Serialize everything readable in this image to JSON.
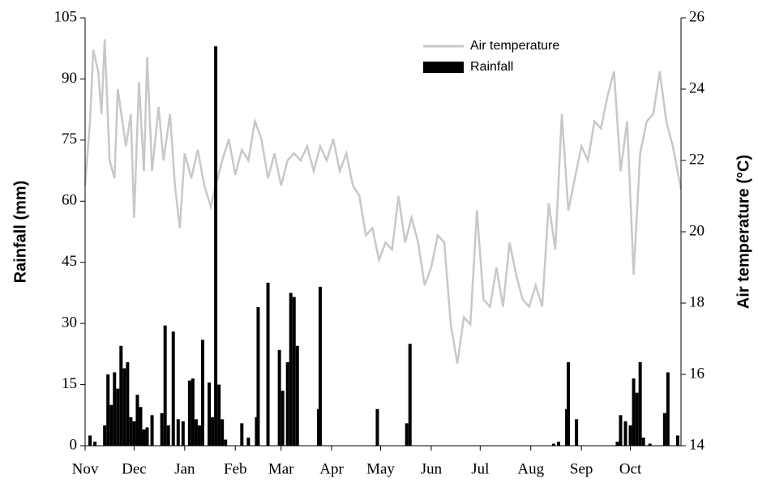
{
  "chart_data": {
    "type": "combo",
    "y_label": "Rainfall (mm)",
    "y2_label": "Air temperature (°C)",
    "xlim": [
      0,
      365
    ],
    "xticks": [
      {
        "value": 0,
        "label": "Nov"
      },
      {
        "value": 30,
        "label": "Dec"
      },
      {
        "value": 61,
        "label": "Jan"
      },
      {
        "value": 92,
        "label": "Feb"
      },
      {
        "value": 120,
        "label": "Mar"
      },
      {
        "value": 151,
        "label": "Apr"
      },
      {
        "value": 181,
        "label": "May"
      },
      {
        "value": 212,
        "label": "Jun"
      },
      {
        "value": 242,
        "label": "Jul"
      },
      {
        "value": 273,
        "label": "Aug"
      },
      {
        "value": 304,
        "label": "Sep"
      },
      {
        "value": 334,
        "label": "Oct"
      }
    ],
    "ylim": [
      0,
      105
    ],
    "yticks": [
      0,
      15,
      30,
      45,
      60,
      75,
      90,
      105
    ],
    "y2lim": [
      14,
      26
    ],
    "y2ticks": [
      14,
      16,
      18,
      20,
      22,
      24,
      26
    ],
    "legend": "upper-right",
    "series": [
      {
        "name": "Air temperature",
        "type": "line",
        "axis": "y2",
        "color": "#c8c8c8",
        "x": [
          0,
          3,
          5,
          8,
          10,
          12,
          15,
          18,
          20,
          25,
          28,
          30,
          33,
          36,
          38,
          41,
          45,
          48,
          52,
          55,
          58,
          61,
          65,
          69,
          73,
          77,
          80,
          84,
          88,
          92,
          96,
          100,
          104,
          108,
          112,
          116,
          120,
          124,
          128,
          132,
          136,
          140,
          144,
          148,
          152,
          156,
          160,
          164,
          168,
          172,
          176,
          180,
          184,
          188,
          192,
          196,
          200,
          204,
          208,
          212,
          216,
          220,
          224,
          228,
          232,
          236,
          240,
          244,
          248,
          252,
          256,
          260,
          264,
          268,
          272,
          276,
          280,
          284,
          288,
          292,
          296,
          300,
          304,
          308,
          312,
          316,
          320,
          324,
          328,
          332,
          336,
          340,
          344,
          348,
          352,
          356,
          360,
          365
        ],
        "values": [
          21.3,
          23.1,
          25.1,
          24.5,
          23.3,
          25.4,
          22.0,
          21.5,
          24.0,
          22.4,
          23.3,
          20.4,
          24.2,
          21.7,
          24.9,
          21.7,
          23.5,
          22.0,
          23.3,
          21.3,
          20.1,
          22.2,
          21.5,
          22.3,
          21.3,
          20.7,
          21.3,
          22.0,
          22.6,
          21.6,
          22.3,
          22.0,
          23.1,
          22.6,
          21.5,
          22.2,
          21.3,
          22.0,
          22.2,
          22.0,
          22.4,
          21.7,
          22.4,
          22.0,
          22.6,
          21.7,
          22.2,
          21.3,
          21.0,
          19.9,
          20.1,
          19.2,
          19.7,
          19.5,
          21.0,
          19.7,
          20.4,
          19.7,
          18.5,
          19.0,
          19.9,
          19.7,
          17.4,
          16.3,
          17.6,
          17.4,
          20.6,
          18.1,
          17.9,
          19.0,
          17.9,
          19.7,
          18.8,
          18.1,
          17.9,
          18.5,
          17.9,
          20.8,
          19.5,
          23.3,
          20.6,
          21.5,
          22.4,
          22.0,
          23.1,
          22.9,
          23.8,
          24.5,
          21.7,
          23.1,
          18.8,
          22.2,
          23.1,
          23.3,
          24.5,
          23.1,
          22.4,
          21.2
        ]
      },
      {
        "name": "Rainfall",
        "type": "bar",
        "color": "#000000",
        "x": [
          3,
          6,
          12,
          14,
          16,
          18,
          20,
          22,
          24,
          26,
          28,
          30,
          32,
          34,
          36,
          38,
          41,
          47,
          49,
          51,
          54,
          57,
          60,
          64,
          66,
          68,
          70,
          72,
          76,
          78,
          80,
          82,
          84,
          86,
          96,
          100,
          105,
          106,
          112,
          119,
          121,
          124,
          126,
          128,
          130,
          143,
          144,
          179,
          197,
          199,
          287,
          290,
          295,
          296,
          301,
          326,
          328,
          331,
          334,
          336,
          338,
          340,
          342,
          346,
          355,
          357,
          363
        ],
        "values": [
          2.5,
          1,
          5,
          17.5,
          10,
          18,
          14,
          24.5,
          19,
          20.5,
          7,
          6,
          12.5,
          9.5,
          4,
          4.5,
          7.5,
          8,
          29.5,
          5,
          28,
          6.5,
          6,
          16,
          16.5,
          6.5,
          5,
          26,
          15.5,
          7,
          98,
          15,
          6.5,
          1.5,
          5.5,
          2,
          7,
          34,
          40,
          23.5,
          13.5,
          20.5,
          37.5,
          36.5,
          24.5,
          9,
          39,
          9,
          5.5,
          25,
          0.5,
          1,
          9,
          20.5,
          6.5,
          1,
          7.5,
          6,
          5,
          16.5,
          13,
          20.5,
          2,
          0.5,
          8,
          18,
          2.5
        ]
      }
    ]
  }
}
